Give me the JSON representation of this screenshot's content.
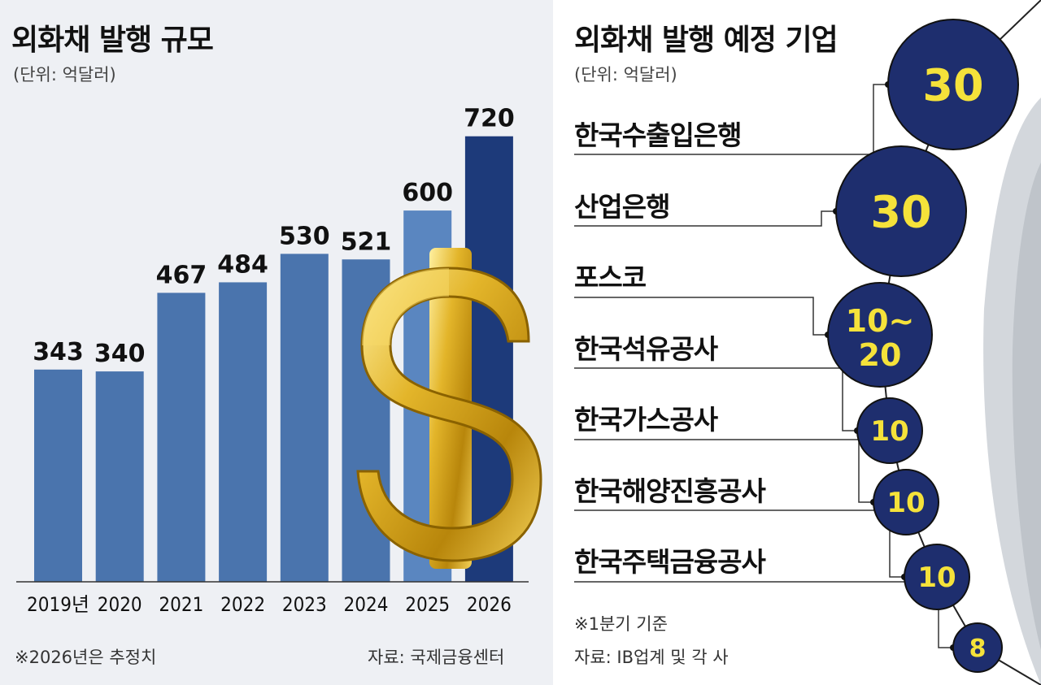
{
  "left": {
    "title": "외화채 발행 규모",
    "unit": "(단위: 억달러)",
    "footnote": "※2026년은 추정치",
    "source": "자료: 국제금융센터"
  },
  "right": {
    "title": "외화채 발행 예정 기업",
    "unit": "(단위: 억달러)",
    "footnote": "※1분기 기준",
    "source": "자료: IB업계 및 각 사",
    "companies": [
      {
        "name": "한국수출입은행",
        "amount": "30"
      },
      {
        "name": "산업은행",
        "amount": "30"
      },
      {
        "name": "포스코",
        "amount": "10~20"
      },
      {
        "name": "한국석유공사",
        "amount": "10"
      },
      {
        "name": "한국가스공사",
        "amount": "10"
      },
      {
        "name": "한국해양진흥공사",
        "amount": "10"
      },
      {
        "name": "한국주택금융공사",
        "amount": "8"
      }
    ]
  },
  "colors": {
    "bar": "#4a74ad",
    "bar_estimate": "#1d3a7a",
    "bar_2025": "#5a86c0",
    "bubble": "#1e2e6e",
    "bubble_text": "#f5e23a",
    "dollar_gold": "#d9a81c"
  },
  "chart_data": [
    {
      "type": "bar",
      "title": "외화채 발행 규모",
      "ylabel": "",
      "xlabel": "",
      "categories": [
        "2019년",
        "2020",
        "2021",
        "2022",
        "2023",
        "2024",
        "2025",
        "2026"
      ],
      "values": [
        343,
        340,
        467,
        484,
        530,
        521,
        600,
        720
      ],
      "data_labels": [
        "343",
        "340",
        "467",
        "484",
        "530",
        "521",
        "600",
        "720"
      ],
      "ylim": [
        0,
        780
      ],
      "grid": false,
      "legend": "none"
    },
    {
      "type": "bubble",
      "title": "외화채 발행 예정 기업",
      "categories": [
        "한국수출입은행",
        "산업은행",
        "포스코",
        "한국석유공사",
        "한국가스공사",
        "한국해양진흥공사",
        "한국주택금융공사"
      ],
      "values": [
        30,
        30,
        15,
        10,
        10,
        10,
        8
      ],
      "data_labels": [
        "30",
        "30",
        "10~20",
        "10",
        "10",
        "10",
        "8"
      ]
    }
  ]
}
